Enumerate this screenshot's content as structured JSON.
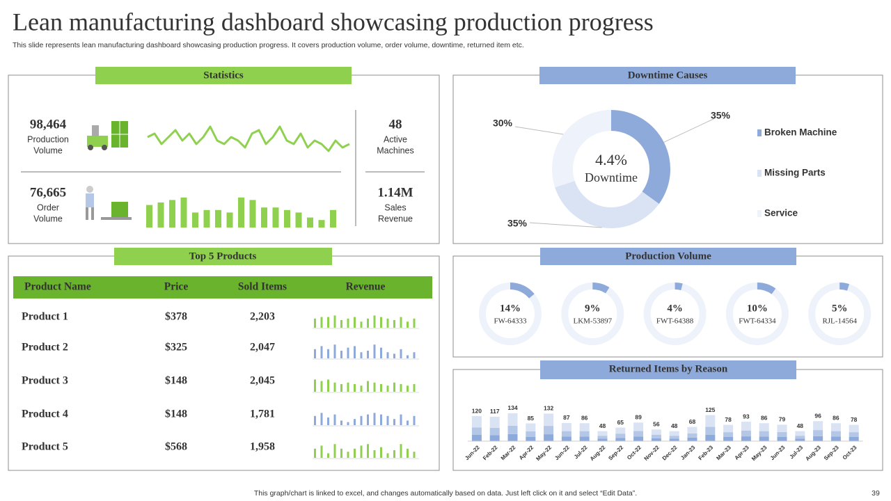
{
  "header": {
    "title": "Lean manufacturing dashboard showcasing production progress",
    "subtitle": "This slide represents lean manufacturing dashboard showcasing production progress. It covers production volume, order volume, downtime, returned item etc."
  },
  "statistics": {
    "title": "Statistics",
    "kpis": [
      {
        "value": "98,464",
        "label_lines": [
          "Production",
          "Volume"
        ]
      },
      {
        "value": "76,665",
        "label_lines": [
          "Order",
          "Volume"
        ]
      },
      {
        "value": "48",
        "label_lines": [
          "Active",
          "Machines"
        ]
      },
      {
        "value": "1.14M",
        "label_lines": [
          "Sales",
          "Revenue"
        ]
      }
    ]
  },
  "products": {
    "title": "Top 5 Products",
    "columns": [
      "Product Name",
      "Price",
      "Sold Items",
      "Revenue"
    ],
    "rows": [
      {
        "name": "Product 1",
        "price": "$378",
        "sold": "2,203",
        "color": "#8fd14f",
        "revenue": [
          6,
          7,
          7,
          8,
          5,
          6,
          7,
          4,
          6,
          8,
          7,
          6,
          5,
          7,
          4,
          6
        ]
      },
      {
        "name": "Product 2",
        "price": "$325",
        "sold": "2,047",
        "color": "#8eaadb",
        "revenue": [
          6,
          8,
          6,
          9,
          5,
          7,
          8,
          4,
          5,
          9,
          7,
          4,
          3,
          6,
          2,
          4
        ]
      },
      {
        "name": "Product 3",
        "price": "$148",
        "sold": "2,045",
        "color": "#8fd14f",
        "revenue": [
          8,
          7,
          8,
          6,
          5,
          6,
          5,
          4,
          7,
          6,
          5,
          4,
          6,
          5,
          4,
          5
        ]
      },
      {
        "name": "Product 4",
        "price": "$148",
        "sold": "1,781",
        "color": "#8eaadb",
        "revenue": [
          6,
          8,
          5,
          7,
          3,
          2,
          4,
          6,
          7,
          8,
          7,
          6,
          4,
          7,
          3,
          6
        ]
      },
      {
        "name": "Product 5",
        "price": "$568",
        "sold": "1,958",
        "color": "#8fd14f",
        "revenue": [
          6,
          8,
          3,
          9,
          6,
          4,
          6,
          8,
          9,
          5,
          7,
          3,
          5,
          9,
          6,
          4
        ]
      }
    ]
  },
  "footer": {
    "note": "This graph/chart is linked to excel,  and changes automatically based on data. Just left click on it and select “Edit Data”.",
    "page_number": "39"
  },
  "chart_data": [
    {
      "type": "line",
      "color": "#8fd14f",
      "values": [
        5,
        6,
        3,
        5,
        7,
        4,
        6,
        3,
        5,
        8,
        4,
        3,
        5,
        4,
        2,
        6,
        7,
        3,
        5,
        8,
        4,
        3,
        6,
        2,
        4,
        3,
        1,
        4,
        2,
        3
      ]
    },
    {
      "type": "bar",
      "color": "#8fd14f",
      "values": [
        9,
        10,
        11,
        12,
        6,
        7,
        7,
        6,
        12,
        11,
        8,
        8,
        7,
        6,
        4,
        3,
        7
      ]
    },
    {
      "type": "pie",
      "title": "Downtime Causes",
      "center_value": "4.4%",
      "center_label": "Downtime",
      "categories": [
        "Broken Machine",
        "Missing Parts",
        "Service"
      ],
      "values": [
        35,
        35,
        30
      ],
      "value_labels": [
        "35%",
        "35%",
        "30%"
      ],
      "colors": [
        "#8eaadb",
        "#dae3f3",
        "#eef2fa"
      ],
      "legend": "right"
    },
    {
      "type": "gauge",
      "title": "Production Volume",
      "categories": [
        "FW-64333",
        "LKM-53897",
        "FWT-64388",
        "FWT-64334",
        "RJL-14564"
      ],
      "values": [
        14,
        9,
        4,
        10,
        5
      ],
      "value_labels": [
        "14%",
        "9%",
        "4%",
        "10%",
        "5%"
      ],
      "color": "#8eaadb",
      "track_color": "#eef2fa"
    },
    {
      "type": "stacked_bar",
      "title": "Returned Items by Reason",
      "categories": [
        "Jun-22",
        "Feb-22",
        "Mar-22",
        "Apr-22",
        "May-22",
        "Jun-22",
        "Jul-22",
        "Aug-22",
        "Sep-22",
        "Oct-22",
        "Nov-22",
        "Dec-22",
        "Jan-23",
        "Feb-23",
        "Mar-23",
        "Apr-23",
        "May-23",
        "Jun-23",
        "Jul-23",
        "Aug-23",
        "Sep-23",
        "Oct-23"
      ],
      "totals": [
        120,
        117,
        134,
        85,
        132,
        87,
        86,
        48,
        65,
        89,
        56,
        48,
        68,
        125,
        78,
        93,
        86,
        79,
        48,
        96,
        86,
        78
      ],
      "series": [
        {
          "color": "#8eaadb",
          "values": [
            30,
            29,
            34,
            21,
            33,
            22,
            22,
            12,
            16,
            22,
            14,
            12,
            17,
            31,
            20,
            23,
            22,
            20,
            12,
            24,
            22,
            20
          ]
        },
        {
          "color": "#b4c7e7",
          "values": [
            36,
            35,
            40,
            26,
            40,
            26,
            26,
            14,
            20,
            27,
            17,
            14,
            20,
            38,
            23,
            28,
            26,
            24,
            14,
            29,
            26,
            23
          ]
        },
        {
          "color": "#dae3f3",
          "values": [
            54,
            53,
            60,
            38,
            59,
            39,
            38,
            22,
            29,
            40,
            25,
            22,
            31,
            56,
            35,
            42,
            38,
            35,
            22,
            43,
            38,
            35
          ]
        }
      ]
    }
  ]
}
